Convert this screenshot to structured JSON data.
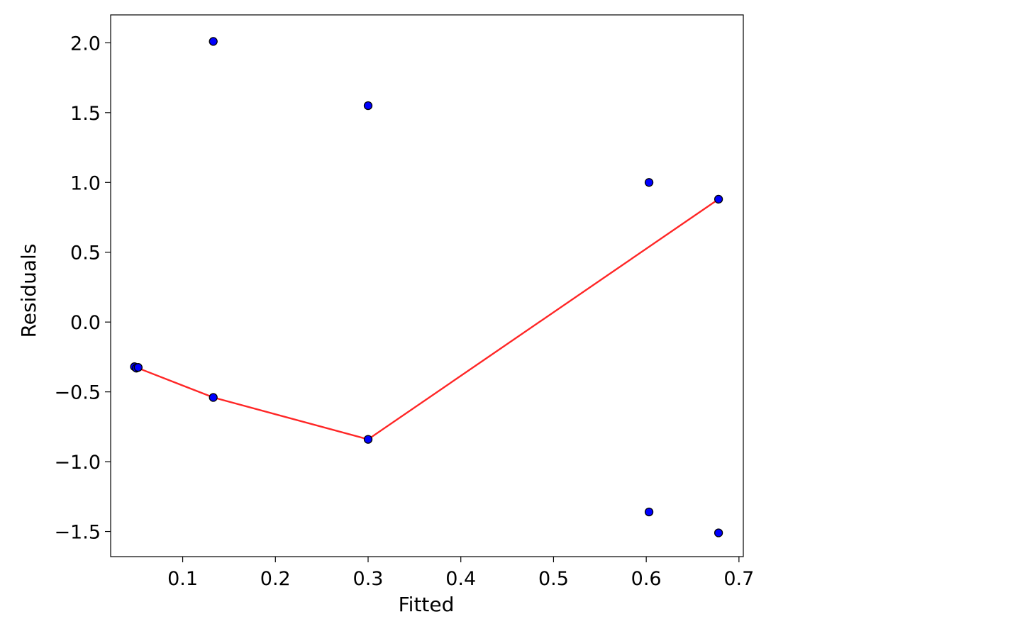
{
  "chart_data": {
    "type": "scatter",
    "title": "",
    "xlabel": "Fitted",
    "ylabel": "Residuals",
    "xlim": [
      0.0223,
      0.7047
    ],
    "ylim": [
      -1.68,
      2.2
    ],
    "xticks": [
      0.1,
      0.2,
      0.3,
      0.4,
      0.5,
      0.6,
      0.7
    ],
    "xtick_labels": [
      "0.1",
      "0.2",
      "0.3",
      "0.4",
      "0.5",
      "0.6",
      "0.7"
    ],
    "yticks": [
      2.0,
      1.5,
      1.0,
      0.5,
      0.0,
      -0.5,
      -1.0,
      -1.5
    ],
    "ytick_labels": [
      "2.0",
      "1.5",
      "1.0",
      "0.5",
      "0.0",
      "−0.5",
      "−1.0",
      "−1.5"
    ],
    "grid": false,
    "colors": {
      "points_fill": "#0000ff",
      "points_edge": "#000000",
      "line": "#ff0000"
    },
    "points": [
      {
        "x": 0.048,
        "y": -0.32
      },
      {
        "x": 0.05,
        "y": -0.33
      },
      {
        "x": 0.052,
        "y": -0.325
      },
      {
        "x": 0.133,
        "y": 2.01
      },
      {
        "x": 0.133,
        "y": -0.54
      },
      {
        "x": 0.3,
        "y": 1.55
      },
      {
        "x": 0.3,
        "y": -0.84
      },
      {
        "x": 0.603,
        "y": 1.0
      },
      {
        "x": 0.603,
        "y": -1.36
      },
      {
        "x": 0.678,
        "y": 0.88
      },
      {
        "x": 0.678,
        "y": -1.51
      }
    ],
    "smoother_line": [
      {
        "x": 0.05,
        "y": -0.325
      },
      {
        "x": 0.133,
        "y": -0.54
      },
      {
        "x": 0.3,
        "y": -0.84
      },
      {
        "x": 0.678,
        "y": 0.88
      }
    ]
  }
}
